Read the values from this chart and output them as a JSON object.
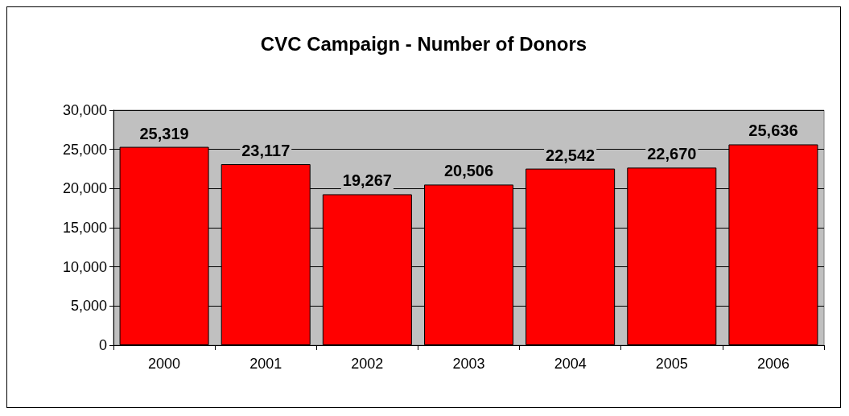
{
  "chart_data": {
    "type": "bar",
    "title": "CVC Campaign - Number of Donors",
    "categories": [
      "2000",
      "2001",
      "2002",
      "2003",
      "2004",
      "2005",
      "2006"
    ],
    "values": [
      25319,
      23117,
      19267,
      20506,
      22542,
      22670,
      25636
    ],
    "color": "#ff0000",
    "ylim": [
      0,
      30000
    ],
    "yticks": [
      {
        "value": 0,
        "label": "0"
      },
      {
        "value": 5000,
        "label": "5,000"
      },
      {
        "value": 10000,
        "label": "10,000"
      },
      {
        "value": 15000,
        "label": "15,000"
      },
      {
        "value": 20000,
        "label": "20,000"
      },
      {
        "value": 25000,
        "label": "25,000"
      },
      {
        "value": 30000,
        "label": "30,000"
      }
    ],
    "value_labels": [
      "25,319",
      "23,117",
      "19,267",
      "20,506",
      "22,542",
      "22,670",
      "25,636"
    ],
    "grid": "y"
  }
}
